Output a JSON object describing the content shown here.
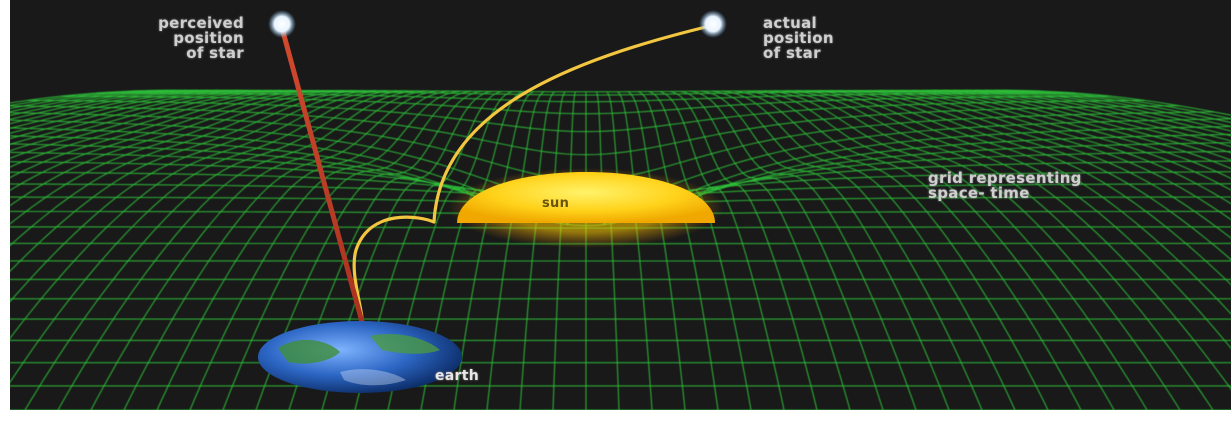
{
  "labels": {
    "perceived": [
      "perceived",
      "position",
      "of star"
    ],
    "actual": [
      "actual",
      "position",
      "of star"
    ],
    "sun": "sun",
    "grid": [
      "grid representing",
      "space- time"
    ],
    "earth": "earth"
  },
  "colors": {
    "background": "#191919",
    "grid": "#2ec43a",
    "sun": "#ffd21a",
    "perceived_ray": "#b53a22",
    "actual_ray": "#f2c640",
    "earth_ocean": "#2c66c4",
    "star": "#ffffff"
  }
}
